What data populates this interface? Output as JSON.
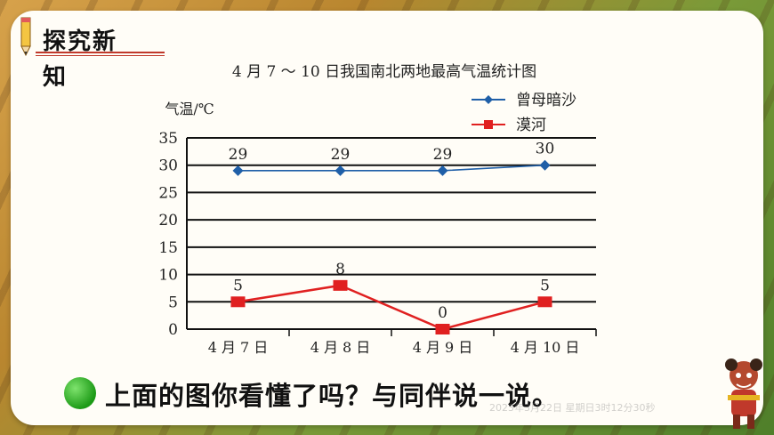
{
  "header": {
    "title": "探究新",
    "title_cont": "知"
  },
  "footer": {
    "prompt": "上面的图你看懂了吗？与同伴说一说。",
    "timestamp": "2023年3月22日 星期日3时12分30秒"
  },
  "colors": {
    "series1": "#1f5fa8",
    "series2": "#e02020",
    "accent": "#c0392b"
  },
  "chart_data": {
    "type": "line",
    "title": "4 月 7 ～ 10 日我国南北两地最高气温统计图",
    "ylabel": "气温/℃",
    "xlabel": "",
    "categories": [
      "4 月 7 日",
      "4 月 8 日",
      "4 月 9 日",
      "4 月 10 日"
    ],
    "y_ticks": [
      "35",
      "30",
      "25",
      "20",
      "15",
      "10",
      "5",
      "0"
    ],
    "ylim": [
      0,
      35
    ],
    "grid": true,
    "legend_position": "top-right",
    "series": [
      {
        "name": "曾母暗沙",
        "values": [
          29,
          29,
          29,
          30
        ],
        "labels": [
          "29",
          "29",
          "29",
          "30"
        ],
        "marker": "diamond",
        "color": "#1f5fa8"
      },
      {
        "name": "漠河",
        "values": [
          5,
          8,
          0,
          5
        ],
        "labels": [
          "5",
          "8",
          "0",
          "5"
        ],
        "marker": "square",
        "color": "#e02020"
      }
    ]
  }
}
